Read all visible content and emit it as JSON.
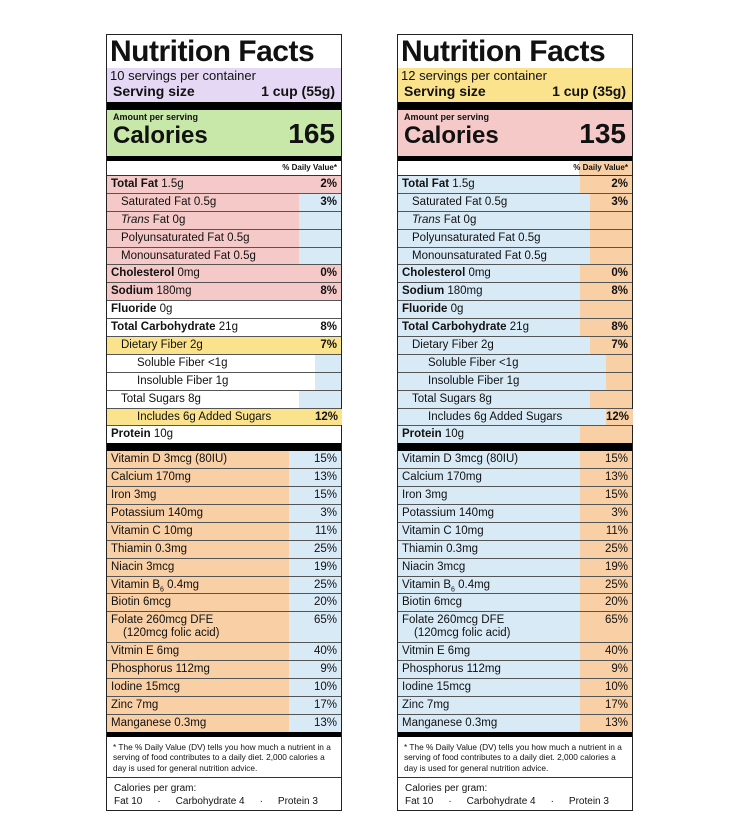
{
  "colors": {
    "purple": "#e5d8f5",
    "yellow": "#fbe38d",
    "green": "#c7e8a8",
    "pink": "#f6c9c9",
    "orange": "#f9cfa5",
    "blue": "#d9eaf7",
    "white": "#ffffff"
  },
  "labels": [
    {
      "title": "Nutrition Facts",
      "servings": "10 servings per container",
      "serving_size_label": "Serving size",
      "serving_size_value": "1 cup (55g)",
      "amount_per_serving": "Amount per serving",
      "calories_label": "Calories",
      "calories_value": "165",
      "dv_header": "% Daily Value*",
      "nutrients": [
        {
          "bold": "Total Fat",
          "rest": " 1.5g",
          "dv": "2%"
        },
        {
          "plain": "Saturated Fat 0.5g",
          "dv": "3%"
        },
        {
          "italic": "Trans",
          "rest": " Fat 0g",
          "dv": ""
        },
        {
          "plain": "Polyunsaturated Fat 0.5g",
          "dv": ""
        },
        {
          "plain": "Monounsaturated Fat 0.5g",
          "dv": ""
        },
        {
          "bold": "Cholesterol",
          "rest": " 0mg",
          "dv": "0%"
        },
        {
          "bold": "Sodium",
          "rest": " 180mg",
          "dv": "8%"
        },
        {
          "bold": "Fluoride",
          "rest": " 0g",
          "dv": ""
        },
        {
          "bold": "Total Carbohydrate",
          "rest": " 21g",
          "dv": "8%"
        },
        {
          "plain": "Dietary Fiber 2g",
          "dv": "7%"
        },
        {
          "plain": "Soluble Fiber <1g",
          "dv": ""
        },
        {
          "plain": "Insoluble Fiber 1g",
          "dv": ""
        },
        {
          "plain": "Total Sugars 8g",
          "dv": ""
        },
        {
          "plain": "Includes 6g Added Sugars",
          "dv": "12%"
        },
        {
          "bold": "Protein",
          "rest": " 10g",
          "dv": ""
        }
      ],
      "vitamins": [
        {
          "name": "Vitamin D 3mcg (80IU)",
          "dv": "15%"
        },
        {
          "name": "Calcium 170mg",
          "dv": "13%"
        },
        {
          "name": "Iron 3mg",
          "dv": "15%"
        },
        {
          "name": "Potassium 140mg",
          "dv": "3%"
        },
        {
          "name": "Vitamin C 10mg",
          "dv": "11%"
        },
        {
          "name": "Thiamin 0.3mg",
          "dv": "25%"
        },
        {
          "name": "Niacin 3mcg",
          "dv": "19%"
        },
        {
          "name": "Vitamin B",
          "sub": "6",
          "name2": "  0.4mg",
          "dv": "25%"
        },
        {
          "name": "Biotin 6mcg",
          "dv": "20%"
        },
        {
          "name": "Folate 260mcg DFE",
          "line2": "(120mcg folic acid)",
          "dv": "65%"
        },
        {
          "name": "Vitmin E 6mg",
          "dv": "40%"
        },
        {
          "name": "Phosphorus 112mg",
          "dv": "9%"
        },
        {
          "name": "Iodine 15mcg",
          "dv": "10%"
        },
        {
          "name": "Zinc 7mg",
          "dv": "17%"
        },
        {
          "name": "Manganese 0.3mg",
          "dv": "13%"
        }
      ],
      "footnote": "* The % Daily Value (DV) tells you how much a nutrient in a serving of food contributes to a daily diet. 2,000 calories a day is used for general nutrition advice.",
      "cpg_title": "Calories per gram:",
      "cpg_items": [
        "Fat 10",
        "·",
        "Carbohydrate 4",
        "·",
        "Protein 3"
      ]
    },
    {
      "title": "Nutrition Facts",
      "servings": "12 servings per container",
      "serving_size_label": "Serving size",
      "serving_size_value": "1 cup (35g)",
      "amount_per_serving": "Amount per serving",
      "calories_label": "Calories",
      "calories_value": "135",
      "dv_header": "% Daily Value*",
      "nutrients": [
        {
          "bold": "Total Fat",
          "rest": " 1.5g",
          "dv": "2%"
        },
        {
          "plain": "Saturated Fat 0.5g",
          "dv": "3%"
        },
        {
          "italic": "Trans",
          "rest": " Fat 0g",
          "dv": ""
        },
        {
          "plain": "Polyunsaturated Fat 0.5g",
          "dv": ""
        },
        {
          "plain": "Monounsaturated Fat 0.5g",
          "dv": ""
        },
        {
          "bold": "Cholesterol",
          "rest": " 0mg",
          "dv": "0%"
        },
        {
          "bold": "Sodium",
          "rest": " 180mg",
          "dv": "8%"
        },
        {
          "bold": "Fluoride",
          "rest": " 0g",
          "dv": ""
        },
        {
          "bold": "Total Carbohydrate",
          "rest": " 21g",
          "dv": "8%"
        },
        {
          "plain": "Dietary Fiber 2g",
          "dv": "7%"
        },
        {
          "plain": "Soluble Fiber <1g",
          "dv": ""
        },
        {
          "plain": "Insoluble Fiber 1g",
          "dv": ""
        },
        {
          "plain": "Total Sugars 8g",
          "dv": ""
        },
        {
          "plain": "Includes 6g Added Sugars",
          "dv": "12%"
        },
        {
          "bold": "Protein",
          "rest": " 10g",
          "dv": ""
        }
      ],
      "vitamins": [
        {
          "name": "Vitamin D 3mcg (80IU)",
          "dv": "15%"
        },
        {
          "name": "Calcium 170mg",
          "dv": "13%"
        },
        {
          "name": "Iron 3mg",
          "dv": "15%"
        },
        {
          "name": "Potassium 140mg",
          "dv": "3%"
        },
        {
          "name": "Vitamin C 10mg",
          "dv": "11%"
        },
        {
          "name": "Thiamin 0.3mg",
          "dv": "25%"
        },
        {
          "name": "Niacin 3mcg",
          "dv": "19%"
        },
        {
          "name": "Vitamin B",
          "sub": "6",
          "name2": "  0.4mg",
          "dv": "25%"
        },
        {
          "name": "Biotin 6mcg",
          "dv": "20%"
        },
        {
          "name": "Folate 260mcg DFE",
          "line2": "(120mcg folic acid)",
          "dv": "65%"
        },
        {
          "name": "Vitmin E 6mg",
          "dv": "40%"
        },
        {
          "name": "Phosphorus 112mg",
          "dv": "9%"
        },
        {
          "name": "Iodine 15mcg",
          "dv": "10%"
        },
        {
          "name": "Zinc 7mg",
          "dv": "17%"
        },
        {
          "name": "Manganese 0.3mg",
          "dv": "13%"
        }
      ],
      "footnote": "* The % Daily Value (DV) tells you how much a nutrient in a serving of food contributes to a daily diet. 2,000 calories a day is used for general nutrition advice.",
      "cpg_title": "Calories per gram:",
      "cpg_items": [
        "Fat 10",
        "·",
        "Carbohydrate 4",
        "·",
        "Protein 3"
      ]
    }
  ]
}
